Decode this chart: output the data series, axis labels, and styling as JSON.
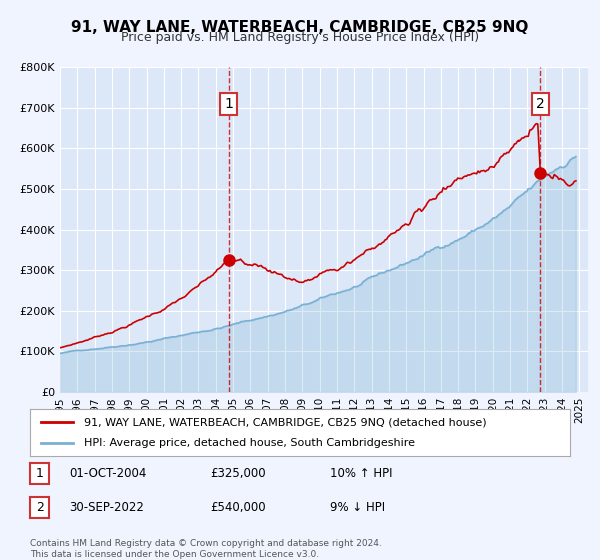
{
  "title": "91, WAY LANE, WATERBEACH, CAMBRIDGE, CB25 9NQ",
  "subtitle": "Price paid vs. HM Land Registry's House Price Index (HPI)",
  "background_color": "#f0f4ff",
  "plot_bg_color": "#dce8f8",
  "ylabel": "",
  "ylim": [
    0,
    800000
  ],
  "yticks": [
    0,
    100000,
    200000,
    300000,
    400000,
    500000,
    600000,
    700000,
    800000
  ],
  "ytick_labels": [
    "£0",
    "£100K",
    "£200K",
    "£300K",
    "£400K",
    "£500K",
    "£600K",
    "£700K",
    "£800K"
  ],
  "xlim_start": 1995.0,
  "xlim_end": 2025.5,
  "xtick_years": [
    1995,
    1996,
    1997,
    1998,
    1999,
    2000,
    2001,
    2002,
    2003,
    2004,
    2005,
    2006,
    2007,
    2008,
    2009,
    2010,
    2011,
    2012,
    2013,
    2014,
    2015,
    2016,
    2017,
    2018,
    2019,
    2020,
    2021,
    2022,
    2023,
    2024,
    2025
  ],
  "red_color": "#cc0000",
  "blue_color": "#7ab0d4",
  "marker1_date": 2004.75,
  "marker1_value": 325000,
  "marker2_date": 2022.75,
  "marker2_value": 540000,
  "vline1_x": 2004.75,
  "vline2_x": 2022.75,
  "legend_line1": "91, WAY LANE, WATERBEACH, CAMBRIDGE, CB25 9NQ (detached house)",
  "legend_line2": "HPI: Average price, detached house, South Cambridgeshire",
  "annotation1_label": "1",
  "annotation2_label": "2",
  "table_row1": [
    "1",
    "01-OCT-2004",
    "£325,000",
    "10% ↑ HPI"
  ],
  "table_row2": [
    "2",
    "30-SEP-2022",
    "£540,000",
    "9% ↓ HPI"
  ],
  "footer_line1": "Contains HM Land Registry data © Crown copyright and database right 2024.",
  "footer_line2": "This data is licensed under the Open Government Licence v3.0."
}
